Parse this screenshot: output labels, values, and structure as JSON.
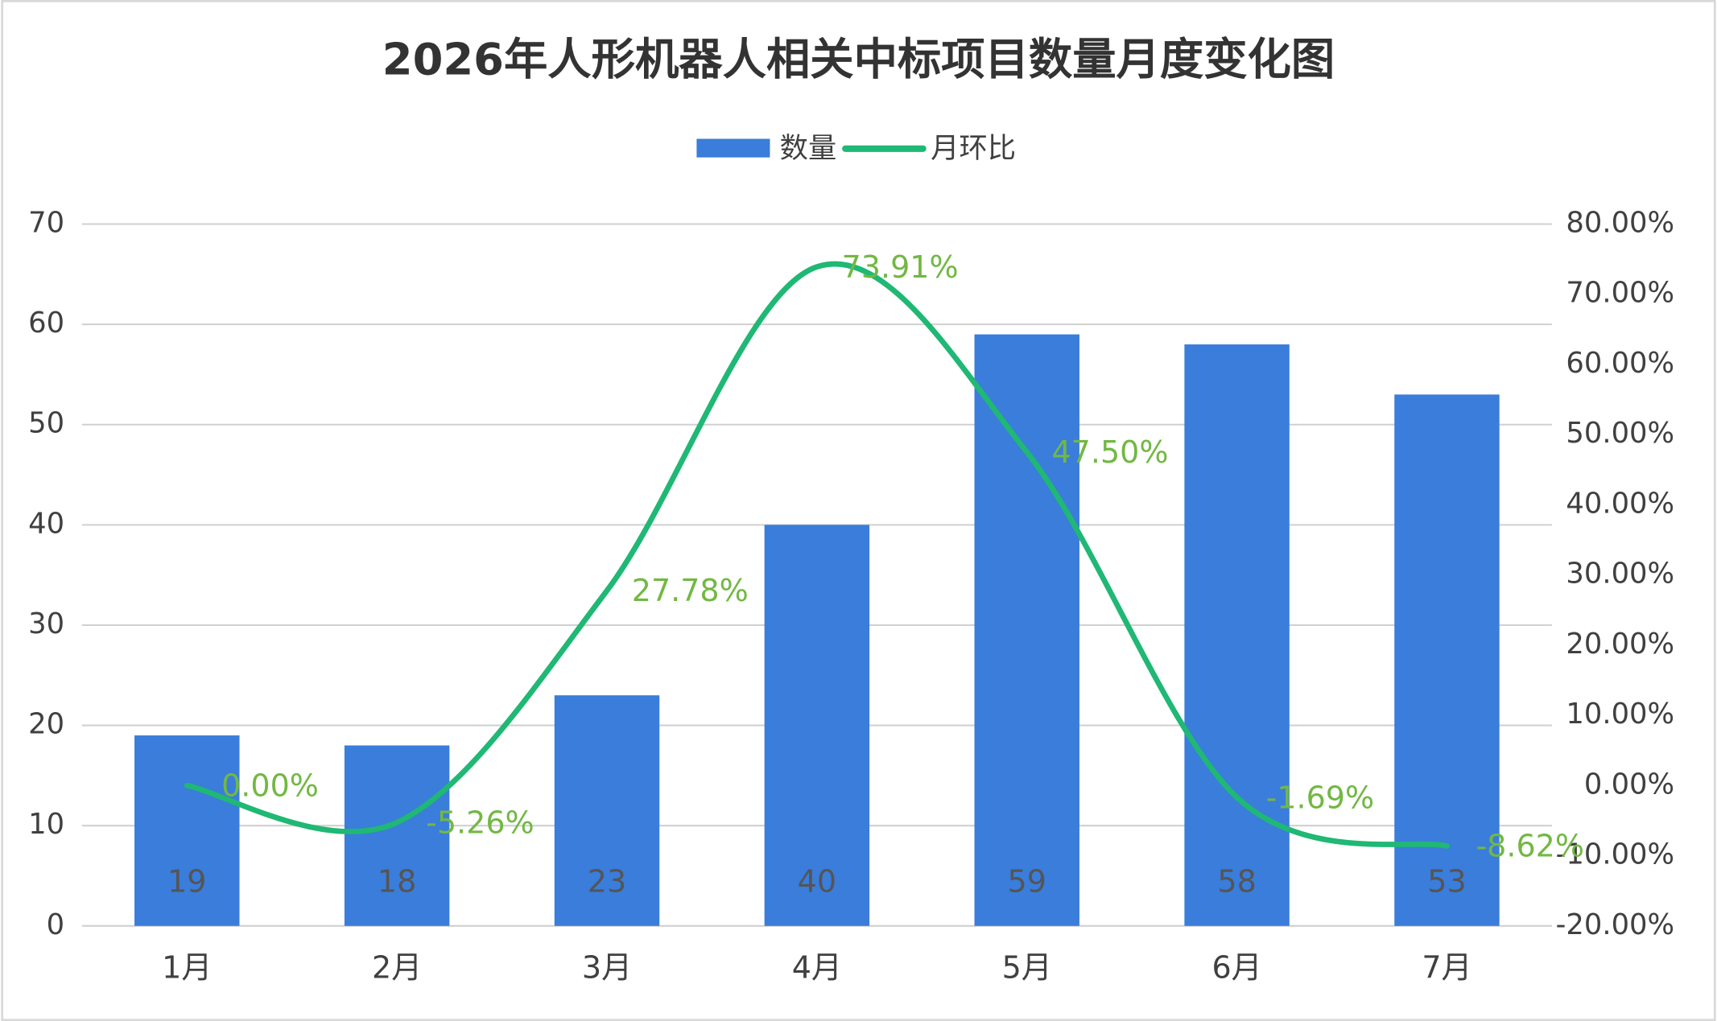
{
  "chart_data": {
    "type": "bar_line",
    "title": "2026年人形机器人相关中标项目数量月度变化图",
    "categories": [
      "1月",
      "2月",
      "3月",
      "4月",
      "5月",
      "6月",
      "7月"
    ],
    "series": [
      {
        "name": "数量",
        "type": "bar",
        "color": "#3a7ddb",
        "values": [
          19,
          18,
          23,
          40,
          59,
          58,
          53
        ]
      },
      {
        "name": "月环比",
        "type": "line",
        "axis": "y2",
        "color": "#1fb874",
        "label_color": "#72b843",
        "values": [
          0,
          -5.26,
          27.78,
          73.91,
          47.5,
          -1.69,
          -8.62
        ],
        "value_labels": [
          "0.00%",
          "-5.26%",
          "27.78%",
          "73.91%",
          "47.50%",
          "-1.69%",
          "-8.62%"
        ]
      }
    ],
    "ylim": [
      0,
      70
    ],
    "yticks": [
      0,
      10,
      20,
      30,
      40,
      50,
      60,
      70
    ],
    "y2lim": [
      -20,
      80
    ],
    "y2ticks": [
      {
        "value": -20,
        "label": "-20.00%"
      },
      {
        "value": -10,
        "label": "-10.00%"
      },
      {
        "value": 0,
        "label": "0.00%"
      },
      {
        "value": 10,
        "label": "10.00%"
      },
      {
        "value": 20,
        "label": "20.00%"
      },
      {
        "value": 30,
        "label": "30.00%"
      },
      {
        "value": 40,
        "label": "40.00%"
      },
      {
        "value": 50,
        "label": "50.00%"
      },
      {
        "value": 60,
        "label": "60.00%"
      },
      {
        "value": 70,
        "label": "70.00%"
      },
      {
        "value": 80,
        "label": "80.00%"
      }
    ],
    "grid": true,
    "legend": "top"
  }
}
